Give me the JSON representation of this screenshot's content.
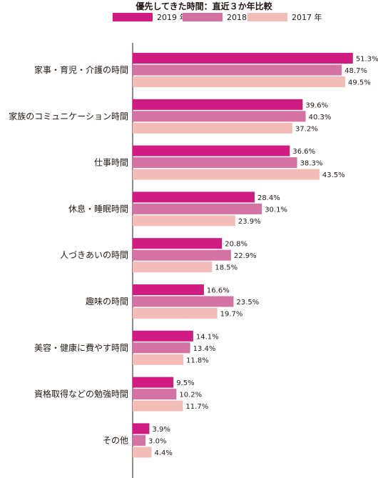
{
  "chart_data": {
    "type": "bar",
    "orientation": "horizontal",
    "title": "優先してきた時間：直近３か年比較",
    "categories": [
      "家事・育児・介護の時間",
      "家族のコミュニケーション時間",
      "仕事時間",
      "休息・睡眠時間",
      "人づきあいの時間",
      "趣味の時間",
      "美容・健康に費やす時間",
      "資格取得などの勉強時間",
      "その他"
    ],
    "series": [
      {
        "name": "2019 年",
        "color": "#cf1b82",
        "values": [
          51.3,
          39.6,
          36.6,
          28.4,
          20.8,
          16.6,
          14.1,
          9.5,
          3.9
        ],
        "labels": [
          "51.3%",
          "39.6%",
          "36.6%",
          "28.4%",
          "20.8%",
          "16.6%",
          "14.1%",
          "9.5%",
          "3.9%"
        ]
      },
      {
        "name": "2018 年",
        "color": "#d572a4",
        "values": [
          48.7,
          40.3,
          38.3,
          30.1,
          22.9,
          23.5,
          13.4,
          10.2,
          3.0
        ],
        "labels": [
          "48.7%",
          "40.3%",
          "38.3%",
          "30.1%",
          "22.9%",
          "23.5%",
          "13.4%",
          "10.2%",
          "3.0%"
        ]
      },
      {
        "name": "2017 年",
        "color": "#f4bcb6",
        "values": [
          49.5,
          37.2,
          43.5,
          23.9,
          18.5,
          19.7,
          11.8,
          11.7,
          4.4
        ],
        "labels": [
          "49.5%",
          "37.2%",
          "43.5%",
          "23.9%",
          "18.5%",
          "19.7%",
          "11.8%",
          "11.7%",
          "4.4%"
        ]
      }
    ],
    "xlim": [
      0,
      55
    ],
    "grid": false,
    "legend": "top"
  }
}
